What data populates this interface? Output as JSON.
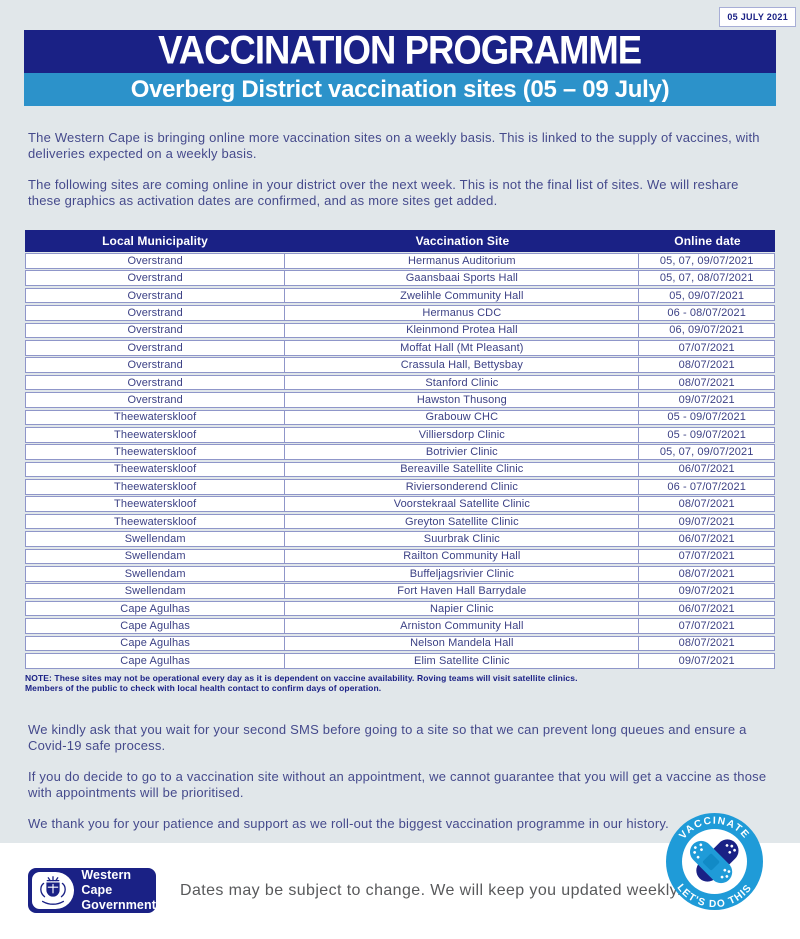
{
  "page": {
    "date_badge": "05 JULY 2021",
    "title": "VACCINATION PROGRAMME",
    "subtitle": "Overberg District vaccination sites (05 – 09 July)"
  },
  "intro_paragraphs": [
    "The Western Cape is bringing online more vaccination sites on a weekly basis. This is linked to the supply of vaccines, with deliveries expected on a weekly basis.",
    "The following sites are coming online in your district over the next week. This is not the final list of sites. We will reshare these graphics as activation dates are confirmed, and as more sites get added."
  ],
  "table": {
    "headers": [
      "Local Municipality",
      "Vaccination Site",
      "Online date"
    ],
    "rows": [
      [
        "Overstrand",
        "Hermanus Auditorium",
        "05, 07, 09/07/2021"
      ],
      [
        "Overstrand",
        "Gaansbaai Sports Hall",
        "05, 07, 08/07/2021"
      ],
      [
        "Overstrand",
        "Zwelihle Community Hall",
        "05, 09/07/2021"
      ],
      [
        "Overstrand",
        "Hermanus CDC",
        "06 - 08/07/2021"
      ],
      [
        "Overstrand",
        "Kleinmond Protea Hall",
        "06, 09/07/2021"
      ],
      [
        "Overstrand",
        "Moffat Hall (Mt Pleasant)",
        "07/07/2021"
      ],
      [
        "Overstrand",
        "Crassula Hall, Bettysbay",
        "08/07/2021"
      ],
      [
        "Overstrand",
        "Stanford Clinic",
        "08/07/2021"
      ],
      [
        "Overstrand",
        "Hawston Thusong",
        "09/07/2021"
      ],
      [
        "Theewaterskloof",
        "Grabouw CHC",
        "05 - 09/07/2021"
      ],
      [
        "Theewaterskloof",
        "Villiersdorp Clinic",
        "05 - 09/07/2021"
      ],
      [
        "Theewaterskloof",
        "Botrivier Clinic",
        "05, 07, 09/07/2021"
      ],
      [
        "Theewaterskloof",
        "Bereaville Satellite Clinic",
        "06/07/2021"
      ],
      [
        "Theewaterskloof",
        "Riviersonderend Clinic",
        "06 - 07/07/2021"
      ],
      [
        "Theewaterskloof",
        "Voorstekraal Satellite Clinic",
        "08/07/2021"
      ],
      [
        "Theewaterskloof",
        "Greyton Satellite Clinic",
        "09/07/2021"
      ],
      [
        "Swellendam",
        "Suurbrak Clinic",
        "06/07/2021"
      ],
      [
        "Swellendam",
        "Railton Community Hall",
        "07/07/2021"
      ],
      [
        "Swellendam",
        "Buffeljagsrivier Clinic",
        "08/07/2021"
      ],
      [
        "Swellendam",
        "Fort Haven Hall Barrydale",
        "09/07/2021"
      ],
      [
        "Cape Agulhas",
        "Napier Clinic",
        "06/07/2021"
      ],
      [
        "Cape Agulhas",
        "Arniston Community Hall",
        "07/07/2021"
      ],
      [
        "Cape Agulhas",
        "Nelson Mandela Hall",
        "08/07/2021"
      ],
      [
        "Cape Agulhas",
        "Elim Satellite Clinic",
        "09/07/2021"
      ]
    ],
    "note_lines": [
      "NOTE: These sites may not be operational every day as it is dependent on vaccine availability. Roving teams will visit satellite clinics.",
      "Members of the public to check with local health contact to confirm days of operation."
    ]
  },
  "outro_paragraphs": [
    "We kindly ask that you wait for your second SMS before going to a site so that we can prevent long queues and ensure a Covid-19 safe process.",
    "If you do decide to go to a vaccination site without an appointment, we cannot guarantee that you will get a vaccine as those with appointments will be prioritised.",
    "We thank you for your patience and support as we roll-out the biggest vaccination programme in our history."
  ],
  "footer": {
    "logo_line1": "Western Cape",
    "logo_line2": "Government",
    "text": "Dates may be subject to change. We will keep you updated weekly."
  },
  "badge": {
    "top_text": "VACCINATE",
    "bottom_text": "LET'S DO THIS"
  },
  "colors": {
    "navy": "#1a2185",
    "band_blue": "#2c92ca",
    "badge_blue": "#1f9bd8",
    "body_text": "#454a8c",
    "background": "#e1e7ea",
    "table_border": "#8f96c9",
    "footer_text": "#58595b"
  }
}
